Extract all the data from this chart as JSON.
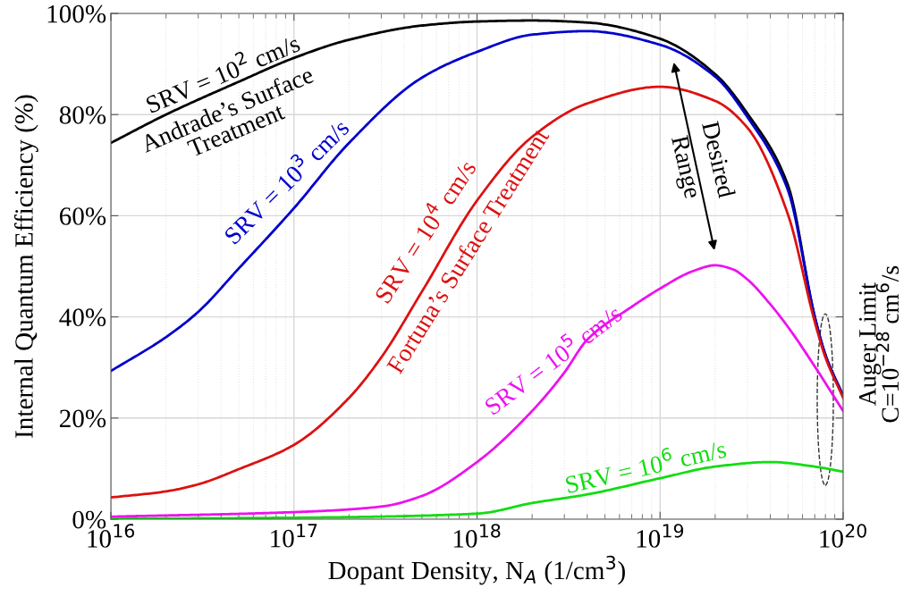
{
  "chart_data": {
    "type": "line",
    "xlabel": "Dopant Density, N$_{A}$ (1/cm$^{3}$)",
    "ylabel": "Internal Quantum Efficiency (%)",
    "log": "x",
    "grid": true,
    "marker": "none",
    "line_style": "solid",
    "xlim": [
      1e+16,
      1e+20
    ],
    "xticks": [
      {
        "value": 1e+16,
        "label": "10$^{16}$"
      },
      {
        "value": 1e+17,
        "label": "10$^{17}$"
      },
      {
        "value": 1e+18,
        "label": "10$^{18}$"
      },
      {
        "value": 1e+19,
        "label": "10$^{19}$"
      },
      {
        "value": 1e+20,
        "label": "10$^{20}$"
      }
    ],
    "ylim": [
      0,
      100
    ],
    "yticks": [
      {
        "value": 0,
        "label": "0%"
      },
      {
        "value": 20,
        "label": "20%"
      },
      {
        "value": 40,
        "label": "40%"
      },
      {
        "value": 60,
        "label": "60%"
      },
      {
        "value": 80,
        "label": "80%"
      },
      {
        "value": 100,
        "label": "100%"
      }
    ],
    "series": [
      {
        "color": "#000000",
        "x": [
          1e+16,
          2e+16,
          5e+16,
          1e+17,
          2e+17,
          5e+17,
          1e+18,
          2e+18,
          4e+18,
          1e+19,
          2e+19,
          3e+19,
          5e+19,
          7e+19,
          8e+19,
          1e+20
        ],
        "values": [
          74.4,
          80,
          86.5,
          91.2,
          94.8,
          97.6,
          98.4,
          98.6,
          98.2,
          95,
          88,
          80.2,
          66,
          40,
          32.5,
          24.4
        ]
      },
      {
        "color": "#0000cc",
        "x": [
          1e+16,
          2e+16,
          3e+16,
          5e+16,
          1e+17,
          2e+17,
          5e+17,
          1e+18,
          2e+18,
          4e+18,
          1e+19,
          2e+19,
          3e+19,
          5e+19,
          7e+19,
          8e+19,
          1e+20
        ],
        "values": [
          29.3,
          36,
          41,
          49.6,
          61.5,
          74.4,
          87.3,
          92.4,
          95.8,
          96.5,
          93.8,
          87.5,
          79.5,
          65,
          40,
          32.5,
          24.4
        ]
      },
      {
        "color": "#dd1111",
        "x": [
          1e+16,
          2e+16,
          3e+16,
          5e+16,
          1e+17,
          2e+17,
          3e+17,
          5e+17,
          1e+18,
          2e+18,
          4e+18,
          1e+19,
          2e+19,
          3e+19,
          5e+19,
          7e+19,
          8e+19,
          1e+20
        ],
        "values": [
          4.3,
          5.5,
          6.9,
          9.9,
          14.7,
          24,
          32,
          45,
          63,
          75.6,
          82.2,
          85.5,
          82.7,
          77.4,
          60.2,
          39,
          32,
          24
        ]
      },
      {
        "color": "#ee11ee",
        "x": [
          1e+16,
          1e+17,
          3e+17,
          5e+17,
          1e+18,
          2e+18,
          3e+18,
          4e+18,
          7e+18,
          1e+19,
          1.5e+19,
          2e+19,
          2.5e+19,
          3e+19,
          4e+19,
          5e+19,
          7e+19,
          1e+20
        ],
        "values": [
          0.5,
          1.4,
          2.5,
          4.6,
          11.3,
          21.4,
          29,
          35.5,
          42,
          45.6,
          49,
          50.2,
          49.4,
          47.4,
          42.5,
          38,
          30.2,
          21.4
        ]
      },
      {
        "color": "#11dd11",
        "x": [
          1e+16,
          1e+17,
          1e+18,
          2e+18,
          4e+18,
          1e+19,
          2e+19,
          4e+19,
          7e+19,
          1e+20
        ],
        "values": [
          0.1,
          0.3,
          1.1,
          3.2,
          4.9,
          8.1,
          10.4,
          11.3,
          10.4,
          9.4
        ]
      }
    ],
    "annotations": [
      "SRV = 10$^{2}$ cm/s",
      "Andrade’s Surface\nTreatment",
      "SRV = 10$^{3}$ cm/s",
      "SRV = 10$^{4}$ cm/s",
      "Fortuna’s Surface Treatment",
      "SRV = 10$^{5}$ cm/s",
      "SRV = 10$^{6}$ cm/s",
      "Desired\nRange",
      "Auger Limit\nC=10$^{−28}$ cm$^{6}$/s"
    ]
  }
}
